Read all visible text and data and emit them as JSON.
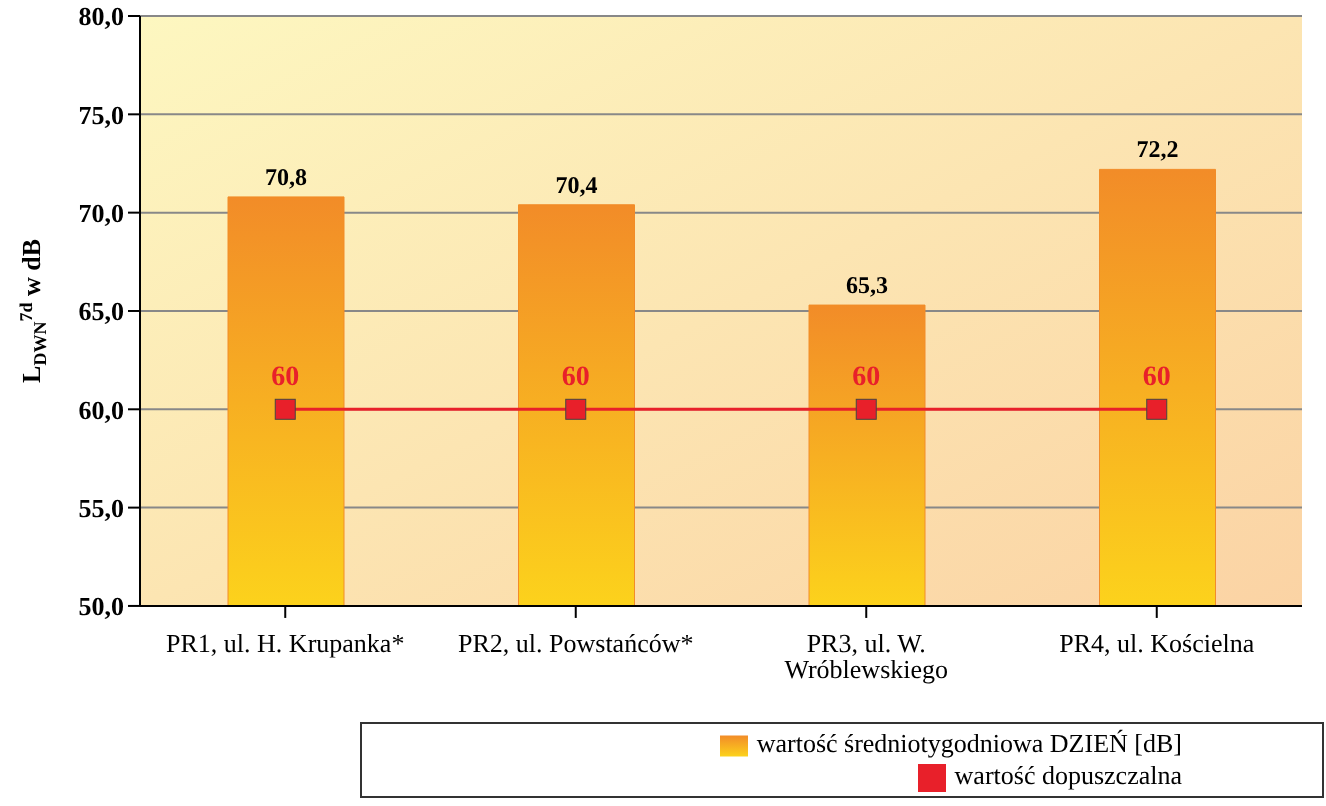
{
  "chart_data": {
    "type": "bar",
    "ylabel": "L$_{DWN}$$^{7d}$ w dB",
    "categories": [
      "PR1, ul. H. Krupanka*",
      "PR2, ul. Powstańców*",
      "PR3, ul. W. Wróblewskiego",
      "PR4, ul. Kościelna"
    ],
    "series": [
      {
        "name": "wartość średniotygodniowa DZIEŃ [dB]",
        "color": "#f28c28",
        "values": [
          70.8,
          70.4,
          65.3,
          72.2
        ],
        "value_labels": [
          "70,8",
          "70,4",
          "65,3",
          "72,2"
        ]
      },
      {
        "name": "wartość dopuszczalna",
        "type": "line",
        "color": "#e8202a",
        "values": [
          60,
          60,
          60,
          60
        ],
        "value_labels": [
          "60",
          "60",
          "60",
          "60"
        ],
        "marker": "square"
      }
    ],
    "ylim": [
      50,
      80
    ],
    "yticks": [
      {
        "value": 50,
        "label": "50,0"
      },
      {
        "value": 55,
        "label": "55,0"
      },
      {
        "value": 60,
        "label": "60,0"
      },
      {
        "value": 65,
        "label": "65,0"
      },
      {
        "value": 70,
        "label": "70,0"
      },
      {
        "value": 75,
        "label": "75,0"
      },
      {
        "value": 80,
        "label": "80,0"
      }
    ],
    "grid": "y",
    "legend": "bottom"
  }
}
